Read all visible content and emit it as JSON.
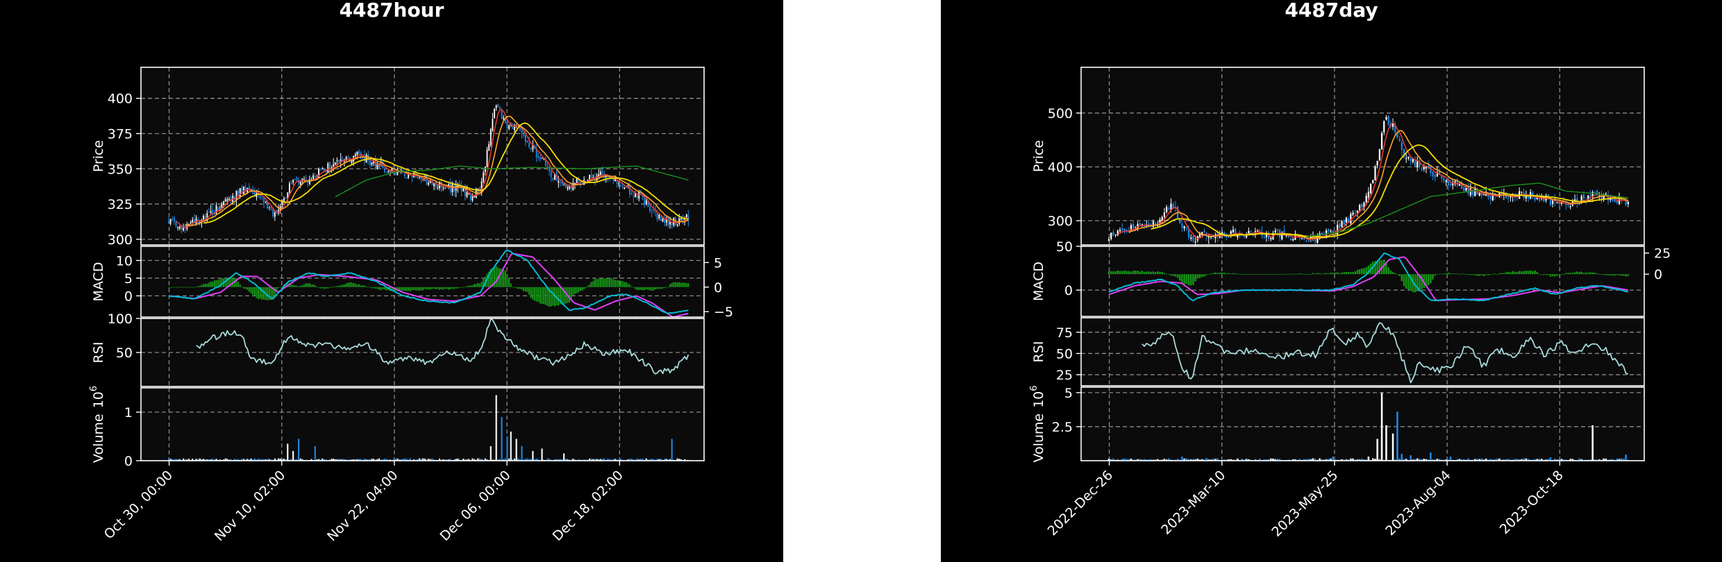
{
  "colors": {
    "figure_bg": "#000000",
    "axes_bg": "#0b0b0b",
    "grid": "#8a8a8a",
    "candle_up": "#ffffff",
    "candle_down": "#1e88e5",
    "ma_fast": "#e53935",
    "ma_mid": "#ffa726",
    "ma_slow": "#f5e000",
    "ma_long": "#1b8a1b",
    "macd_line": "#00bcd4",
    "signal_line": "#e040fb",
    "histogram": "#169216",
    "rsi": "#a8dadc",
    "vol_up": "#ffffff",
    "vol_down": "#1e88e5"
  },
  "chart_data": [
    {
      "type": "candlestick",
      "title": "4487hour",
      "x_ticks": [
        "Oct 30, 00:00",
        "Nov 10, 02:00",
        "Nov 22, 04:00",
        "Dec 06, 00:00",
        "Dec 18, 02:00"
      ],
      "price_panel": {
        "ylabel": "Price",
        "yticks": [
          300,
          325,
          350,
          375,
          400
        ],
        "ylim": [
          296,
          422
        ],
        "close_anchors": [
          [
            0,
            313
          ],
          [
            0.02,
            309
          ],
          [
            0.05,
            312
          ],
          [
            0.08,
            318
          ],
          [
            0.12,
            330
          ],
          [
            0.15,
            336
          ],
          [
            0.18,
            328
          ],
          [
            0.2,
            318
          ],
          [
            0.22,
            326
          ],
          [
            0.24,
            345
          ],
          [
            0.26,
            340
          ],
          [
            0.3,
            350
          ],
          [
            0.34,
            356
          ],
          [
            0.37,
            360
          ],
          [
            0.4,
            352
          ],
          [
            0.44,
            348
          ],
          [
            0.48,
            343
          ],
          [
            0.52,
            338
          ],
          [
            0.56,
            336
          ],
          [
            0.58,
            331
          ],
          [
            0.6,
            335
          ],
          [
            0.62,
            378
          ],
          [
            0.63,
            397
          ],
          [
            0.65,
            382
          ],
          [
            0.68,
            375
          ],
          [
            0.71,
            360
          ],
          [
            0.74,
            345
          ],
          [
            0.77,
            338
          ],
          [
            0.8,
            342
          ],
          [
            0.84,
            346
          ],
          [
            0.88,
            336
          ],
          [
            0.91,
            330
          ],
          [
            0.94,
            315
          ],
          [
            0.97,
            312
          ],
          [
            1.0,
            316
          ]
        ],
        "ma_long_anchors": [
          [
            0.32,
            330
          ],
          [
            0.38,
            342
          ],
          [
            0.44,
            348
          ],
          [
            0.5,
            349
          ],
          [
            0.56,
            352
          ],
          [
            0.62,
            350
          ],
          [
            0.7,
            351
          ],
          [
            0.8,
            350
          ],
          [
            0.9,
            352
          ],
          [
            1.0,
            342
          ]
        ]
      },
      "macd_panel": {
        "ylabel": "MACD",
        "yticks_left": [
          0,
          5,
          10
        ],
        "ylim_left": [
          -6,
          14
        ],
        "yticks_right": [
          -5,
          0,
          5
        ],
        "ylim_right": [
          -6.1,
          8.3
        ],
        "macd_anchors": [
          [
            0,
            0
          ],
          [
            0.05,
            -0.8
          ],
          [
            0.1,
            3
          ],
          [
            0.13,
            6.5
          ],
          [
            0.16,
            4
          ],
          [
            0.2,
            -1
          ],
          [
            0.23,
            4
          ],
          [
            0.27,
            6.5
          ],
          [
            0.3,
            5.5
          ],
          [
            0.35,
            6.5
          ],
          [
            0.4,
            4
          ],
          [
            0.45,
            0
          ],
          [
            0.5,
            -1.5
          ],
          [
            0.55,
            -2
          ],
          [
            0.6,
            1
          ],
          [
            0.62,
            7
          ],
          [
            0.65,
            13
          ],
          [
            0.69,
            10
          ],
          [
            0.73,
            2
          ],
          [
            0.77,
            -4
          ],
          [
            0.8,
            -3.5
          ],
          [
            0.85,
            0
          ],
          [
            0.88,
            0.5
          ],
          [
            0.92,
            -2
          ],
          [
            0.96,
            -5
          ],
          [
            1.0,
            -4
          ]
        ],
        "signal_anchors": [
          [
            0,
            0
          ],
          [
            0.05,
            -0.8
          ],
          [
            0.1,
            1
          ],
          [
            0.14,
            5.5
          ],
          [
            0.17,
            5.5
          ],
          [
            0.21,
            1
          ],
          [
            0.25,
            5
          ],
          [
            0.29,
            6
          ],
          [
            0.34,
            5.5
          ],
          [
            0.4,
            4.5
          ],
          [
            0.45,
            1
          ],
          [
            0.5,
            -1
          ],
          [
            0.55,
            -1.5
          ],
          [
            0.6,
            0
          ],
          [
            0.63,
            4
          ],
          [
            0.66,
            12
          ],
          [
            0.7,
            11
          ],
          [
            0.74,
            5
          ],
          [
            0.78,
            -2
          ],
          [
            0.82,
            -4
          ],
          [
            0.86,
            -1.5
          ],
          [
            0.9,
            0
          ],
          [
            0.93,
            -2
          ],
          [
            0.97,
            -6
          ],
          [
            1.0,
            -5
          ]
        ]
      },
      "rsi_panel": {
        "ylabel": "RSI",
        "yticks": [
          50,
          100
        ],
        "ylim": [
          0,
          100
        ],
        "start_frac": 0.05,
        "rsi_anchors": [
          [
            0.05,
            55
          ],
          [
            0.08,
            70
          ],
          [
            0.12,
            80
          ],
          [
            0.14,
            75
          ],
          [
            0.16,
            40
          ],
          [
            0.2,
            35
          ],
          [
            0.23,
            75
          ],
          [
            0.27,
            60
          ],
          [
            0.3,
            62
          ],
          [
            0.34,
            55
          ],
          [
            0.38,
            65
          ],
          [
            0.4,
            50
          ],
          [
            0.42,
            35
          ],
          [
            0.46,
            42
          ],
          [
            0.5,
            35
          ],
          [
            0.54,
            50
          ],
          [
            0.58,
            38
          ],
          [
            0.6,
            55
          ],
          [
            0.62,
            98
          ],
          [
            0.64,
            78
          ],
          [
            0.67,
            58
          ],
          [
            0.7,
            45
          ],
          [
            0.74,
            35
          ],
          [
            0.77,
            45
          ],
          [
            0.8,
            62
          ],
          [
            0.84,
            48
          ],
          [
            0.88,
            55
          ],
          [
            0.91,
            38
          ],
          [
            0.94,
            20
          ],
          [
            0.97,
            25
          ],
          [
            1.0,
            45
          ]
        ]
      },
      "volume_panel": {
        "ylabel": "Volume",
        "scale_label": "10^6",
        "yticks": [
          0,
          1
        ],
        "ylim": [
          0,
          1.5
        ],
        "spikes": [
          [
            0.23,
            0.35
          ],
          [
            0.24,
            0.2
          ],
          [
            0.25,
            0.45
          ],
          [
            0.28,
            0.3
          ],
          [
            0.62,
            0.3
          ],
          [
            0.63,
            1.35
          ],
          [
            0.64,
            0.9
          ],
          [
            0.65,
            0.5
          ],
          [
            0.66,
            0.6
          ],
          [
            0.67,
            0.45
          ],
          [
            0.68,
            0.3
          ],
          [
            0.7,
            0.2
          ],
          [
            0.72,
            0.25
          ],
          [
            0.76,
            0.15
          ],
          [
            0.97,
            0.45
          ]
        ]
      }
    },
    {
      "type": "candlestick",
      "title": "4487day",
      "x_ticks": [
        "2022-Dec-26",
        "2023-Mar-10",
        "2023-May-25",
        "2023-Aug-04",
        "2023-Oct-18"
      ],
      "price_panel": {
        "ylabel": "Price",
        "yticks": [
          300,
          400,
          500
        ],
        "ylim": [
          255,
          585
        ],
        "close_anchors": [
          [
            0,
            270
          ],
          [
            0.03,
            285
          ],
          [
            0.06,
            290
          ],
          [
            0.1,
            300
          ],
          [
            0.12,
            335
          ],
          [
            0.14,
            290
          ],
          [
            0.16,
            268
          ],
          [
            0.2,
            275
          ],
          [
            0.25,
            278
          ],
          [
            0.3,
            275
          ],
          [
            0.35,
            272
          ],
          [
            0.4,
            268
          ],
          [
            0.43,
            280
          ],
          [
            0.47,
            310
          ],
          [
            0.5,
            350
          ],
          [
            0.52,
            420
          ],
          [
            0.53,
            490
          ],
          [
            0.55,
            470
          ],
          [
            0.57,
            420
          ],
          [
            0.6,
            400
          ],
          [
            0.65,
            375
          ],
          [
            0.7,
            355
          ],
          [
            0.75,
            345
          ],
          [
            0.8,
            350
          ],
          [
            0.84,
            340
          ],
          [
            0.88,
            325
          ],
          [
            0.91,
            340
          ],
          [
            0.94,
            350
          ],
          [
            0.97,
            340
          ],
          [
            1.0,
            335
          ]
        ],
        "ma_long_anchors": [
          [
            0.38,
            270
          ],
          [
            0.45,
            280
          ],
          [
            0.5,
            295
          ],
          [
            0.56,
            320
          ],
          [
            0.62,
            345
          ],
          [
            0.7,
            355
          ],
          [
            0.77,
            365
          ],
          [
            0.83,
            370
          ],
          [
            0.88,
            355
          ],
          [
            0.94,
            350
          ],
          [
            1.0,
            342
          ]
        ]
      },
      "macd_panel": {
        "ylabel": "MACD",
        "yticks_left": [
          0,
          50
        ],
        "ylim_left": [
          -30,
          50
        ],
        "yticks_right": [
          0,
          25
        ],
        "ylim_right": [
          -50,
          33
        ],
        "macd_anchors": [
          [
            0,
            -2
          ],
          [
            0.05,
            8
          ],
          [
            0.1,
            12
          ],
          [
            0.13,
            6
          ],
          [
            0.16,
            -12
          ],
          [
            0.2,
            -3
          ],
          [
            0.25,
            0
          ],
          [
            0.35,
            0
          ],
          [
            0.43,
            0
          ],
          [
            0.47,
            6
          ],
          [
            0.5,
            20
          ],
          [
            0.53,
            42
          ],
          [
            0.56,
            35
          ],
          [
            0.59,
            5
          ],
          [
            0.62,
            -12
          ],
          [
            0.66,
            -10
          ],
          [
            0.72,
            -12
          ],
          [
            0.77,
            -5
          ],
          [
            0.82,
            2
          ],
          [
            0.86,
            -5
          ],
          [
            0.9,
            2
          ],
          [
            0.94,
            5
          ],
          [
            0.97,
            2
          ],
          [
            1.0,
            -2
          ]
        ],
        "signal_anchors": [
          [
            0,
            -5
          ],
          [
            0.05,
            5
          ],
          [
            0.1,
            10
          ],
          [
            0.14,
            8
          ],
          [
            0.17,
            -5
          ],
          [
            0.21,
            -4
          ],
          [
            0.26,
            0
          ],
          [
            0.35,
            0
          ],
          [
            0.43,
            -1
          ],
          [
            0.47,
            4
          ],
          [
            0.51,
            15
          ],
          [
            0.54,
            35
          ],
          [
            0.57,
            38
          ],
          [
            0.6,
            15
          ],
          [
            0.63,
            -12
          ],
          [
            0.67,
            -11
          ],
          [
            0.73,
            -10
          ],
          [
            0.78,
            -6
          ],
          [
            0.83,
            0
          ],
          [
            0.87,
            -3
          ],
          [
            0.91,
            1
          ],
          [
            0.95,
            5
          ],
          [
            1.0,
            0
          ]
        ]
      },
      "rsi_panel": {
        "ylabel": "RSI",
        "yticks": [
          25,
          50,
          75
        ],
        "ylim": [
          12,
          92
        ],
        "start_frac": 0.06,
        "rsi_anchors": [
          [
            0.06,
            65
          ],
          [
            0.08,
            55
          ],
          [
            0.1,
            70
          ],
          [
            0.12,
            74
          ],
          [
            0.14,
            35
          ],
          [
            0.16,
            20
          ],
          [
            0.18,
            70
          ],
          [
            0.2,
            60
          ],
          [
            0.24,
            48
          ],
          [
            0.28,
            55
          ],
          [
            0.32,
            45
          ],
          [
            0.36,
            50
          ],
          [
            0.4,
            48
          ],
          [
            0.43,
            82
          ],
          [
            0.45,
            60
          ],
          [
            0.48,
            72
          ],
          [
            0.5,
            58
          ],
          [
            0.52,
            88
          ],
          [
            0.55,
            70
          ],
          [
            0.58,
            18
          ],
          [
            0.6,
            40
          ],
          [
            0.63,
            30
          ],
          [
            0.66,
            35
          ],
          [
            0.69,
            62
          ],
          [
            0.72,
            35
          ],
          [
            0.75,
            55
          ],
          [
            0.78,
            45
          ],
          [
            0.81,
            68
          ],
          [
            0.84,
            48
          ],
          [
            0.87,
            62
          ],
          [
            0.9,
            50
          ],
          [
            0.93,
            65
          ],
          [
            0.96,
            52
          ],
          [
            1.0,
            28
          ]
        ]
      },
      "volume_panel": {
        "ylabel": "Volume",
        "scale_label": "10^6",
        "yticks": [
          2.5,
          5.0
        ],
        "ylim": [
          0,
          5.4
        ],
        "spikes": [
          [
            0.14,
            0.3
          ],
          [
            0.19,
            0.2
          ],
          [
            0.43,
            0.3
          ],
          [
            0.5,
            0.3
          ],
          [
            0.515,
            1.6
          ],
          [
            0.525,
            5.0
          ],
          [
            0.535,
            2.6
          ],
          [
            0.545,
            2.0
          ],
          [
            0.555,
            3.6
          ],
          [
            0.565,
            0.5
          ],
          [
            0.58,
            0.4
          ],
          [
            0.62,
            0.6
          ],
          [
            0.66,
            0.3
          ],
          [
            0.85,
            0.25
          ],
          [
            0.93,
            2.6
          ],
          [
            0.995,
            0.45
          ]
        ]
      }
    }
  ]
}
